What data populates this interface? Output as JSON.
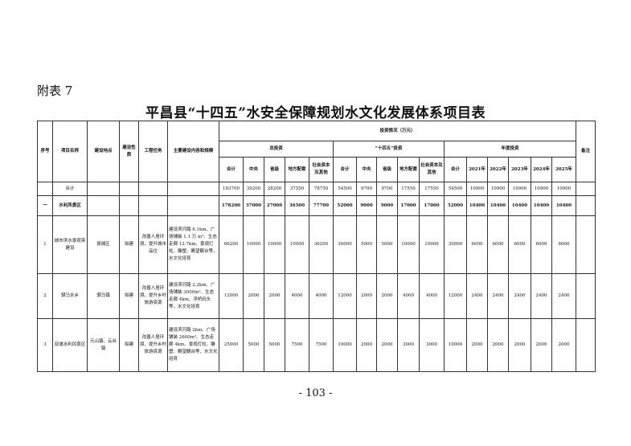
{
  "appendix_label": "附表 7",
  "title": "平昌县“十四五”水安全保障规划水文化发展体系项目表",
  "header": {
    "seq": "序号",
    "name": "项目名称",
    "location": "建设地点",
    "nature": "建设性质",
    "task": "工程任务",
    "content": "主要建设内容和规模",
    "investment": "投资情况（万元）",
    "total_group": "总投资",
    "plan_group": "“十四五”投资",
    "annual_group": "年度投资",
    "remark": "备注",
    "sub_total": [
      "合计",
      "中央",
      "省级",
      "地方配套",
      "社会资本及其他"
    ],
    "sub_plan": [
      "合计",
      "中央",
      "省级",
      "地方配套",
      "社会资本及其他"
    ],
    "sub_annual": [
      "合计",
      "2021年",
      "2022年",
      "2023年",
      "2024年",
      "2025年"
    ]
  },
  "rows": [
    {
      "seq": "",
      "name": "合计",
      "location": "",
      "nature": "",
      "task": "",
      "content": "",
      "bold": false,
      "values": [
        "183700",
        "39200",
        "28200",
        "37550",
        "78750",
        "54500",
        "9700",
        "9700",
        "17550",
        "17550",
        "54500",
        "10900",
        "10900",
        "10900",
        "10900",
        "10900"
      ],
      "remark": ""
    },
    {
      "seq": "一",
      "name": "水利风景区",
      "location": "",
      "nature": "",
      "task": "",
      "content": "",
      "bold": true,
      "values": [
        "178200",
        "37000",
        "27000",
        "36500",
        "77700",
        "52000",
        "9000",
        "9000",
        "17000",
        "17000",
        "52000",
        "10400",
        "10400",
        "10400",
        "10400",
        "10400"
      ],
      "remark": ""
    },
    {
      "seq": "1",
      "name": "城市滨水景观带建设",
      "location": "县城区",
      "nature": "拟建",
      "task": "改善人居环境，提升城市品位",
      "content": "建设滨河路 6.1km、广场铺装 1.1 万 m²、生态走廊 12.7km、景观灯柱、雕塑、瞭望観台等，水文化培育",
      "bold": false,
      "values": [
        "66200",
        "10000",
        "10000",
        "10000",
        "36200",
        "30000",
        "5000",
        "5000",
        "10000",
        "10000",
        "30000",
        "6000",
        "6000",
        "6000",
        "6000",
        "6000"
      ],
      "remark": ""
    },
    {
      "seq": "2",
      "name": "驷马水乡",
      "location": "驷马镇",
      "nature": "拟建",
      "task": "改善人居环境，提升乡村旅游资源",
      "content": "建设滨河路 2.2km、广场铺装 3000m²、生态走廊 4km、浮桥码头等，水文化培育",
      "bold": false,
      "values": [
        "12000",
        "2000",
        "2000",
        "4000",
        "4000",
        "12000",
        "2000",
        "2000",
        "4000",
        "4000",
        "12000",
        "2400",
        "2400",
        "2400",
        "2400",
        "2400"
      ],
      "remark": ""
    },
    {
      "seq": "3",
      "name": "双滩水利风景区",
      "location": "元山镇、云台镇",
      "nature": "拟建",
      "task": "改善人居环境，提升乡村旅游资源",
      "content": "建设滨河路 2km、广场铺装 2600m²、生态走廊 4km、景观灯柱、雕塑、瞭望観台等，水文化培育",
      "bold": false,
      "values": [
        "25000",
        "5000",
        "5000",
        "7500",
        "7500",
        "10000",
        "2000",
        "2000",
        "3000",
        "3000",
        "10000",
        "2000",
        "2000",
        "2000",
        "2000",
        "2000"
      ],
      "remark": ""
    }
  ],
  "page_number": "- 103 -"
}
